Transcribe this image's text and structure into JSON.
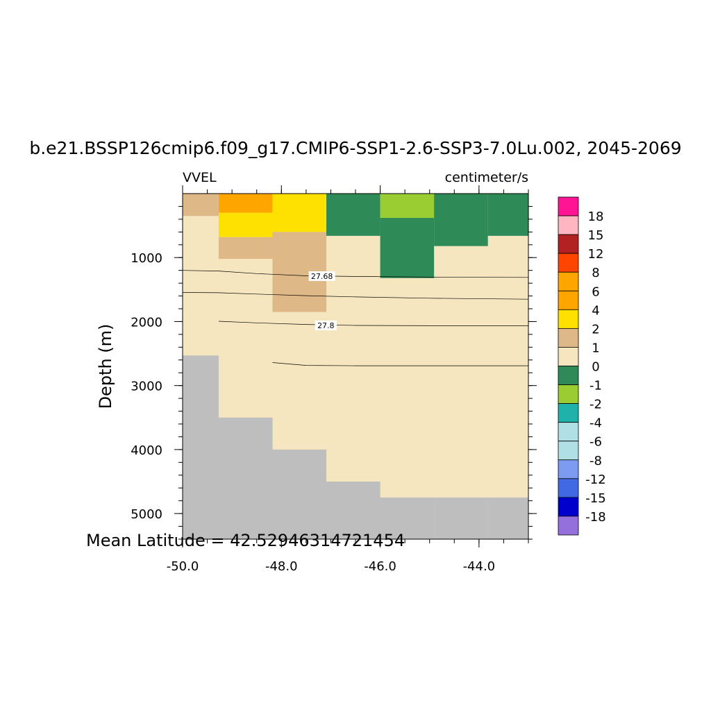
{
  "chart_data": {
    "type": "heatmap",
    "title": "b.e21.BSSP126cmip6.f09_g17.CMIP6-SSP1-2.6-SSP3-7.0Lu.002, 2045-2069",
    "left_label": "VVEL",
    "right_label": "centimeter/s",
    "ylabel": "Depth (m)",
    "xlabel": "",
    "footer": "Mean Latitude = 42.52946314721454",
    "xlim": [
      -50.0,
      -43.0
    ],
    "ylim": [
      0,
      5400
    ],
    "y_reversed": true,
    "xticks": [
      {
        "value": -50.0,
        "label": "-50.0"
      },
      {
        "value": -48.0,
        "label": "-48.0"
      },
      {
        "value": -46.0,
        "label": "-46.0"
      },
      {
        "value": -44.0,
        "label": "-44.0"
      }
    ],
    "yticks": [
      {
        "value": 1000,
        "label": "1000"
      },
      {
        "value": 2000,
        "label": "2000"
      },
      {
        "value": 3000,
        "label": "3000"
      },
      {
        "value": 4000,
        "label": "4000"
      },
      {
        "value": 5000,
        "label": "5000"
      }
    ],
    "x_edges": [
      -50.0,
      -49.27,
      -48.18,
      -47.09,
      -46.0,
      -44.91,
      -43.82,
      -43.0
    ],
    "land_color": "#bebebe",
    "background_value_color": "#f5e6bf",
    "colorbar": {
      "colors": [
        "#ff1493",
        "#ffb6c1",
        "#b22222",
        "#ff4500",
        "#ffa500",
        "#ffa500",
        "#ffe100",
        "#deb887",
        "#f5e6bf",
        "#2e8b57",
        "#9acd32",
        "#20b2aa",
        "#b0e0e6",
        "#b0e0e6",
        "#7b9cf0",
        "#4169e1",
        "#0000cd",
        "#9370db"
      ],
      "labels": [
        "18",
        "15",
        "12",
        "8",
        "6",
        "4",
        "2",
        "1",
        "0",
        "-1",
        "-2",
        "-4",
        "-6",
        "-8",
        "-12",
        "-15",
        "-18"
      ]
    },
    "cells": [
      {
        "x0": -50.0,
        "x1": -49.27,
        "y0": 0,
        "y1": 350,
        "value": 1.5
      },
      {
        "x0": -49.27,
        "x1": -48.18,
        "y0": 0,
        "y1": 300,
        "value": 5
      },
      {
        "x0": -49.27,
        "x1": -48.18,
        "y0": 300,
        "y1": 680,
        "value": 3
      },
      {
        "x0": -49.27,
        "x1": -48.18,
        "y0": 680,
        "y1": 1020,
        "value": 1.5
      },
      {
        "x0": -48.18,
        "x1": -47.09,
        "y0": 0,
        "y1": 600,
        "value": 3
      },
      {
        "x0": -48.18,
        "x1": -47.09,
        "y0": 600,
        "y1": 1850,
        "value": 1.5
      },
      {
        "x0": -47.09,
        "x1": -46.0,
        "y0": 0,
        "y1": 660,
        "value": -0.5
      },
      {
        "x0": -46.0,
        "x1": -44.91,
        "y0": 0,
        "y1": 380,
        "value": -1.5
      },
      {
        "x0": -46.0,
        "x1": -44.91,
        "y0": 380,
        "y1": 1320,
        "value": -0.5
      },
      {
        "x0": -44.91,
        "x1": -43.82,
        "y0": 0,
        "y1": 820,
        "value": -0.5
      },
      {
        "x0": -43.82,
        "x1": -43.0,
        "y0": 0,
        "y1": 660,
        "value": -0.5
      }
    ],
    "bathymetry": [
      {
        "x0": -50.0,
        "x1": -49.27,
        "depth": 2530
      },
      {
        "x0": -49.27,
        "x1": -48.18,
        "depth": 3500
      },
      {
        "x0": -48.18,
        "x1": -47.09,
        "depth": 4000
      },
      {
        "x0": -47.09,
        "x1": -46.0,
        "depth": 4500
      },
      {
        "x0": -46.0,
        "x1": -44.91,
        "depth": 4750
      },
      {
        "x0": -44.91,
        "x1": -43.82,
        "depth": 4750
      },
      {
        "x0": -43.82,
        "x1": -43.0,
        "depth": 4750
      }
    ],
    "contours": [
      {
        "label": "27.68",
        "label_at": [
          -47.18,
          1290
        ],
        "points": [
          [
            -50.0,
            1200
          ],
          [
            -49.27,
            1210
          ],
          [
            -48.5,
            1250
          ],
          [
            -47.5,
            1285
          ],
          [
            -46.5,
            1295
          ],
          [
            -45.0,
            1305
          ],
          [
            -43.0,
            1310
          ]
        ]
      },
      {
        "label": "",
        "points": [
          [
            -50.0,
            1545
          ],
          [
            -49.27,
            1550
          ],
          [
            -48.5,
            1570
          ],
          [
            -47.5,
            1595
          ],
          [
            -46.5,
            1615
          ],
          [
            -45.0,
            1635
          ],
          [
            -43.0,
            1650
          ]
        ]
      },
      {
        "label": "27.8",
        "label_at": [
          -47.1,
          2060
        ],
        "points": [
          [
            -49.27,
            1995
          ],
          [
            -48.5,
            2020
          ],
          [
            -47.5,
            2045
          ],
          [
            -46.5,
            2060
          ],
          [
            -45.0,
            2065
          ],
          [
            -43.0,
            2065
          ]
        ]
      },
      {
        "label": "",
        "points": [
          [
            -48.18,
            2640
          ],
          [
            -47.5,
            2685
          ],
          [
            -46.5,
            2690
          ],
          [
            -45.0,
            2690
          ],
          [
            -43.0,
            2690
          ]
        ]
      }
    ]
  }
}
